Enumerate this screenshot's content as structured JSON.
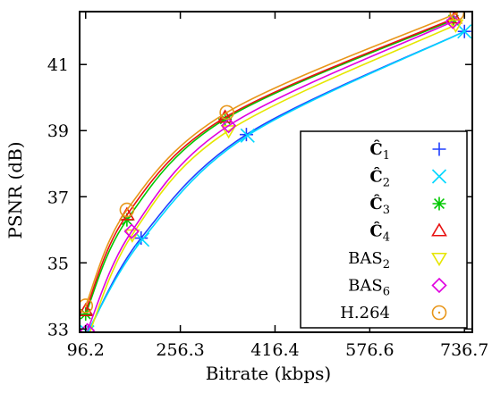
{
  "chart_data": {
    "type": "line",
    "xlabel": "Bitrate (kbps)",
    "ylabel": "PSNR (dB)",
    "xlim": [
      86,
      750
    ],
    "ylim": [
      32.9,
      42.6
    ],
    "xticks": [
      96.2,
      256.3,
      416.4,
      576.6,
      736.7
    ],
    "xtick_labels": [
      "96.2",
      "256.3",
      "416.4",
      "576.6",
      "736.7"
    ],
    "yticks": [
      33,
      35,
      37,
      39,
      41
    ],
    "ytick_labels": [
      "33",
      "35",
      "37",
      "39",
      "41"
    ],
    "legend_position": "bottom-right",
    "grid": false,
    "series": [
      {
        "name": "Ĉ",
        "sub": "1",
        "marker": "plus",
        "color": "#1f3fff",
        "x": [
          100,
          190,
          368,
          736.7
        ],
        "y": [
          32.9,
          35.75,
          38.88,
          42.0
        ]
      },
      {
        "name": "Ĉ",
        "sub": "2",
        "marker": "x",
        "color": "#00d8ff",
        "x": [
          99,
          192,
          370,
          736.7
        ],
        "y": [
          32.9,
          35.7,
          38.85,
          42.0
        ]
      },
      {
        "name": "Ĉ",
        "sub": "3",
        "marker": "asterisk",
        "color": "#00c800",
        "x": [
          96.2,
          166,
          332,
          718
        ],
        "y": [
          33.45,
          36.3,
          39.35,
          42.35
        ]
      },
      {
        "name": "Ĉ",
        "sub": "4",
        "marker": "triangle-up",
        "color": "#e81010",
        "x": [
          96.2,
          166,
          332,
          720
        ],
        "y": [
          33.55,
          36.45,
          39.4,
          42.4
        ]
      },
      {
        "name": "BAS",
        "sub": "2",
        "marker": "triangle-down",
        "color": "#e6e600",
        "x": [
          100,
          175,
          338,
          722
        ],
        "y": [
          32.75,
          35.85,
          39.0,
          42.2
        ]
      },
      {
        "name": "BAS",
        "sub": "6",
        "marker": "diamond",
        "color": "#e000e0",
        "x": [
          99,
          174,
          338,
          717
        ],
        "y": [
          32.95,
          35.95,
          39.15,
          42.3
        ]
      },
      {
        "name": "H.264",
        "sub": "",
        "marker": "circle",
        "color": "#e8961a",
        "x": [
          96.2,
          166,
          335,
          724
        ],
        "y": [
          33.7,
          36.6,
          39.55,
          42.55
        ]
      }
    ]
  }
}
